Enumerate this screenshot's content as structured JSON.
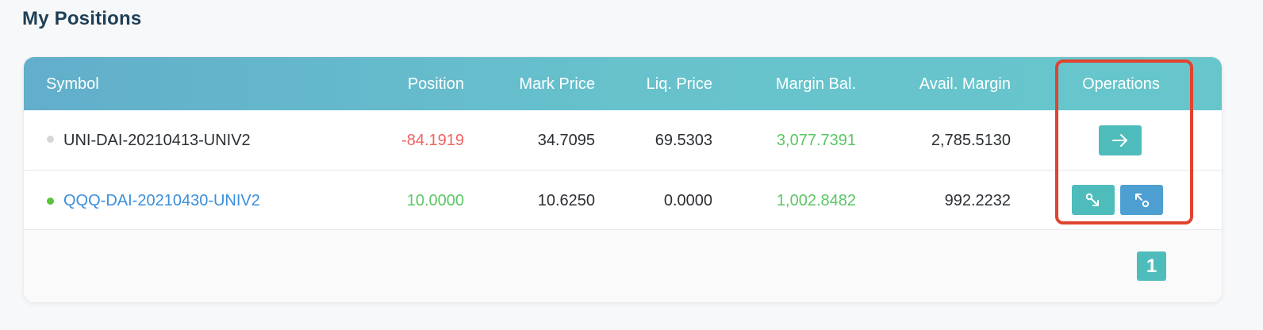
{
  "page": {
    "title": "My Positions"
  },
  "table": {
    "columns": [
      "Symbol",
      "Position",
      "Mark Price",
      "Liq. Price",
      "Margin Bal.",
      "Avail. Margin",
      "Operations"
    ],
    "rows": [
      {
        "symbol": "UNI-DAI-20210413-UNIV2",
        "status_dot": "grey",
        "position": "-84.1919",
        "mark_price": "34.7095",
        "liq_price": "69.5303",
        "margin_bal": "3,077.7391",
        "avail_margin": "2,785.5130",
        "operations": [
          "arrow-right-icon"
        ]
      },
      {
        "symbol": "QQQ-DAI-20210430-UNIV2",
        "status_dot": "green",
        "position": "10.0000",
        "mark_price": "10.6250",
        "liq_price": "0.0000",
        "margin_bal": "1,002.8482",
        "avail_margin": "992.2232",
        "operations": [
          "shrink-icon",
          "expand-icon"
        ]
      }
    ]
  },
  "pagination": {
    "current_page": "1"
  },
  "colors": {
    "accent": "#4fbcbc",
    "secondary": "#4d9fd1",
    "negative": "#ef6461",
    "positive": "#5bc665",
    "link": "#3a8fdc",
    "highlight": "#e0432f"
  }
}
